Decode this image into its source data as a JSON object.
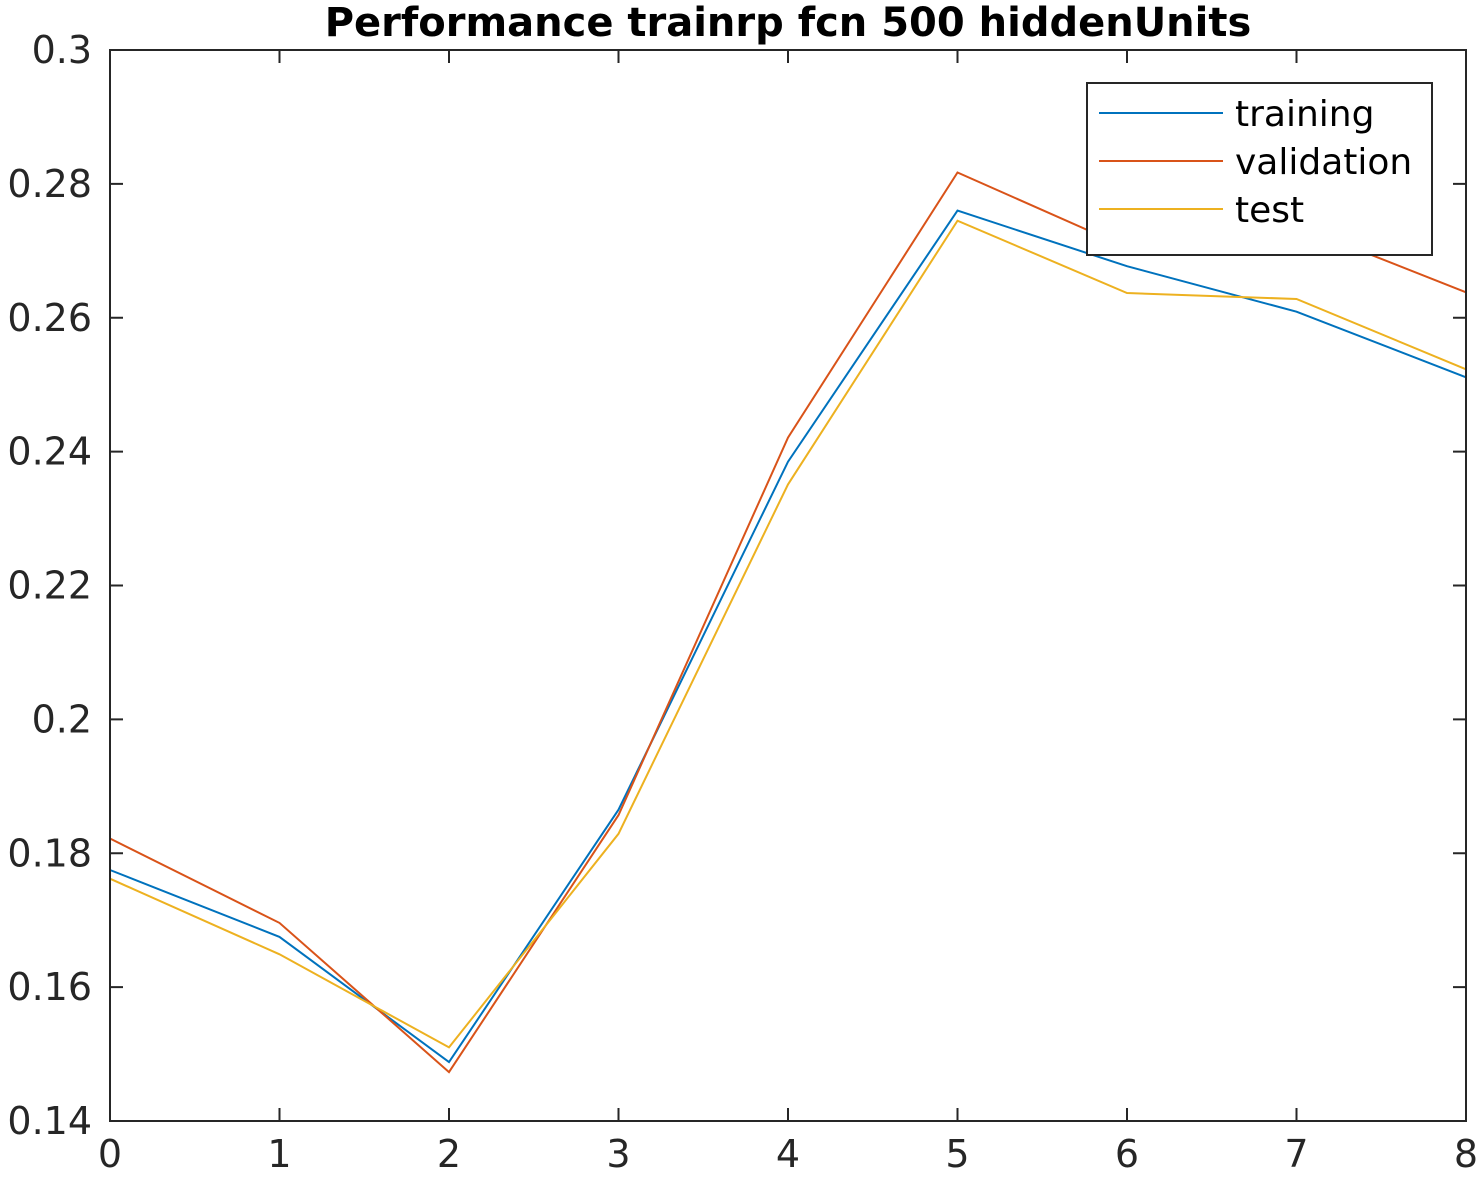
{
  "chart_data": {
    "type": "line",
    "title": "Performance trainrp fcn 500 hiddenUnits",
    "xlabel": "",
    "ylabel": "",
    "xlim": [
      0,
      8
    ],
    "ylim": [
      0.14,
      0.3
    ],
    "x_ticks": [
      "0",
      "1",
      "2",
      "3",
      "4",
      "5",
      "6",
      "7",
      "8"
    ],
    "y_ticks": [
      "0.14",
      "0.16",
      "0.18",
      "0.2",
      "0.22",
      "0.24",
      "0.26",
      "0.28",
      "0.3"
    ],
    "grid": false,
    "legend_position": "top-right",
    "x": [
      0,
      1,
      2,
      3,
      4,
      5,
      6,
      7,
      8
    ],
    "series": [
      {
        "name": "training",
        "color": "#0072BD",
        "values": [
          0.1775,
          0.1675,
          0.1488,
          0.1865,
          0.2385,
          0.276,
          0.2677,
          0.2609,
          0.2511
        ]
      },
      {
        "name": "validation",
        "color": "#D95319",
        "values": [
          0.1822,
          0.1696,
          0.1473,
          0.1857,
          0.2421,
          0.2817,
          0.2705,
          0.2738,
          0.2638
        ]
      },
      {
        "name": "test",
        "color": "#EDB120",
        "values": [
          0.1762,
          0.1649,
          0.151,
          0.1829,
          0.2351,
          0.2745,
          0.2637,
          0.2628,
          0.2523
        ]
      }
    ]
  }
}
